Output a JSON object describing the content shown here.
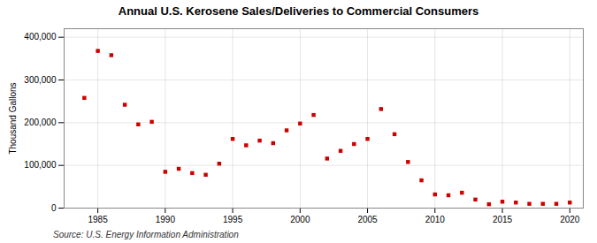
{
  "chart_data": {
    "type": "scatter",
    "title": "Annual U.S. Kerosene Sales/Deliveries to Commercial Consumers",
    "ylabel": "Thousand Gallons",
    "annotations": [
      "Source: U.S. Energy Information Administration"
    ],
    "x": [
      1984,
      1985,
      1986,
      1987,
      1988,
      1989,
      1990,
      1991,
      1992,
      1993,
      1994,
      1995,
      1996,
      1997,
      1998,
      1999,
      2000,
      2001,
      2002,
      2003,
      2004,
      2005,
      2006,
      2007,
      2008,
      2009,
      2010,
      2011,
      2012,
      2013,
      2014,
      2015,
      2016,
      2017,
      2018,
      2019,
      2020
    ],
    "values": [
      258000,
      368000,
      358000,
      242000,
      196000,
      202000,
      85000,
      92000,
      82000,
      78000,
      104000,
      162000,
      147000,
      158000,
      152000,
      182000,
      198000,
      218000,
      116000,
      134000,
      150000,
      162000,
      232000,
      173000,
      108000,
      65000,
      32000,
      30000,
      36000,
      20000,
      9000,
      15000,
      13000,
      10000,
      10000,
      10000,
      13000
    ],
    "color": "#cc0000",
    "marker": "square",
    "xlim": [
      1982.5,
      2021
    ],
    "xticks": [
      1985,
      1990,
      1995,
      2000,
      2005,
      2010,
      2015,
      2020
    ],
    "ylim": [
      0,
      420000
    ],
    "yticks": [
      0,
      {
        "value": 100000,
        "label": "100,000"
      },
      {
        "value": 200000,
        "label": "200,000"
      },
      {
        "value": 300000,
        "label": "300,000"
      },
      {
        "value": 400000,
        "label": "400,000"
      }
    ],
    "grid": true
  }
}
